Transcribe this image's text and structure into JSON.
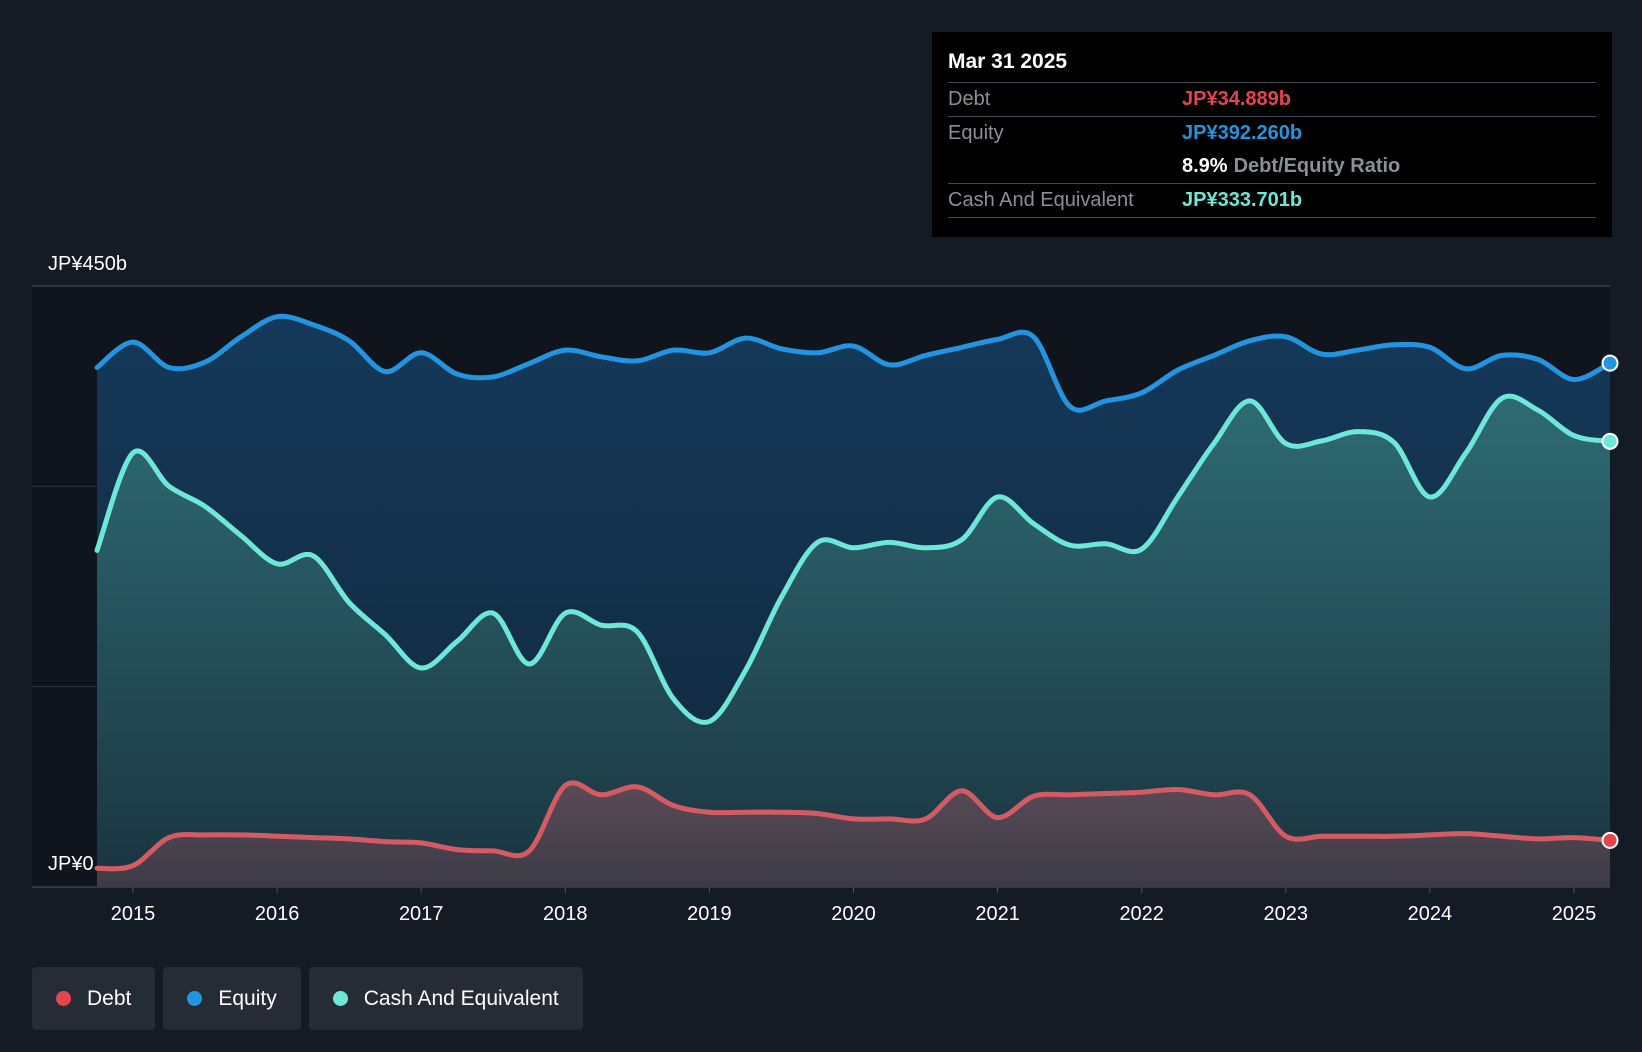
{
  "chart_data": {
    "type": "area",
    "title": "",
    "xlabel": "",
    "ylabel": "",
    "ylim": [
      0,
      450
    ],
    "y_unit": "JP¥ billions",
    "y_tick_labels": [
      "JP¥450b",
      "JP¥0"
    ],
    "x_tick_labels": [
      "2015",
      "2016",
      "2017",
      "2018",
      "2019",
      "2020",
      "2021",
      "2022",
      "2023",
      "2024",
      "2025"
    ],
    "grid": true,
    "legend_position": "bottom-left",
    "series": [
      {
        "name": "Equity",
        "color": "#2394df",
        "x": [
          2014.75,
          2015.0,
          2015.25,
          2015.5,
          2015.75,
          2016.0,
          2016.25,
          2016.5,
          2016.75,
          2017.0,
          2017.25,
          2017.5,
          2017.75,
          2018.0,
          2018.25,
          2018.5,
          2018.75,
          2019.0,
          2019.25,
          2019.5,
          2019.75,
          2020.0,
          2020.25,
          2020.5,
          2020.75,
          2021.0,
          2021.25,
          2021.5,
          2021.75,
          2022.0,
          2022.25,
          2022.5,
          2022.75,
          2023.0,
          2023.25,
          2023.5,
          2023.75,
          2024.0,
          2024.25,
          2024.5,
          2024.75,
          2025.0,
          2025.25
        ],
        "values": [
          389,
          408,
          389,
          393,
          412,
          427,
          421,
          409,
          386,
          400,
          384,
          382,
          392,
          402,
          397,
          394,
          402,
          400,
          411,
          403,
          400,
          405,
          391,
          398,
          404,
          410,
          412,
          360,
          364,
          370,
          387,
          398,
          409,
          412,
          399,
          402,
          406,
          404,
          388,
          398,
          395,
          380,
          392.26
        ]
      },
      {
        "name": "Cash And Equivalent",
        "color": "#6ee7d9",
        "x": [
          2014.75,
          2015.0,
          2015.25,
          2015.5,
          2015.75,
          2016.0,
          2016.25,
          2016.5,
          2016.75,
          2017.0,
          2017.25,
          2017.5,
          2017.75,
          2018.0,
          2018.25,
          2018.5,
          2018.75,
          2019.0,
          2019.25,
          2019.5,
          2019.75,
          2020.0,
          2020.25,
          2020.5,
          2020.75,
          2021.0,
          2021.25,
          2021.5,
          2021.75,
          2022.0,
          2022.25,
          2022.5,
          2022.75,
          2023.0,
          2023.25,
          2023.5,
          2023.75,
          2024.0,
          2024.25,
          2024.5,
          2024.75,
          2025.0,
          2025.25
        ],
        "values": [
          252,
          325,
          300,
          285,
          263,
          242,
          248,
          213,
          189,
          164,
          184,
          205,
          167,
          205,
          196,
          191,
          141,
          124,
          162,
          217,
          258,
          254,
          258,
          254,
          260,
          292,
          272,
          256,
          257,
          253,
          292,
          332,
          364,
          332,
          334,
          341,
          333,
          292,
          325,
          366,
          357,
          338,
          333.701
        ]
      },
      {
        "name": "Debt",
        "color": "#e5454c",
        "x": [
          2014.75,
          2015.0,
          2015.25,
          2015.5,
          2015.75,
          2016.0,
          2016.25,
          2016.5,
          2016.75,
          2017.0,
          2017.25,
          2017.5,
          2017.75,
          2018.0,
          2018.25,
          2018.5,
          2018.75,
          2019.0,
          2019.25,
          2019.5,
          2019.75,
          2020.0,
          2020.25,
          2020.5,
          2020.75,
          2021.0,
          2021.25,
          2021.5,
          2021.75,
          2022.0,
          2022.25,
          2022.5,
          2022.75,
          2023.0,
          2023.25,
          2023.5,
          2023.75,
          2024.0,
          2024.25,
          2024.5,
          2024.75,
          2025.0,
          2025.25
        ],
        "values": [
          14,
          16,
          37,
          39,
          39,
          38,
          37,
          36,
          34,
          33,
          28,
          27,
          27,
          76,
          69,
          75,
          61,
          56,
          56,
          56,
          55,
          51,
          51,
          51,
          72,
          52,
          68,
          69,
          70,
          71,
          73,
          69,
          69,
          38,
          38,
          38,
          38,
          39,
          40,
          38,
          36,
          37,
          34.889
        ]
      }
    ],
    "tooltip": {
      "date": "Mar 31 2025",
      "rows": [
        {
          "label": "Debt",
          "value": "JP¥34.889b",
          "color": "#e5454c"
        },
        {
          "label": "Equity",
          "value": "JP¥392.260b",
          "color": "#2394df"
        },
        {
          "label": "",
          "ratio_value": "8.9%",
          "ratio_label": "Debt/Equity Ratio"
        },
        {
          "label": "Cash And Equivalent",
          "value": "JP¥333.701b",
          "color": "#6ee7d9"
        }
      ]
    }
  },
  "legend": [
    {
      "label": "Debt",
      "color": "#e5454c"
    },
    {
      "label": "Equity",
      "color": "#2394df"
    },
    {
      "label": "Cash And Equivalent",
      "color": "#6ee7d9"
    }
  ]
}
